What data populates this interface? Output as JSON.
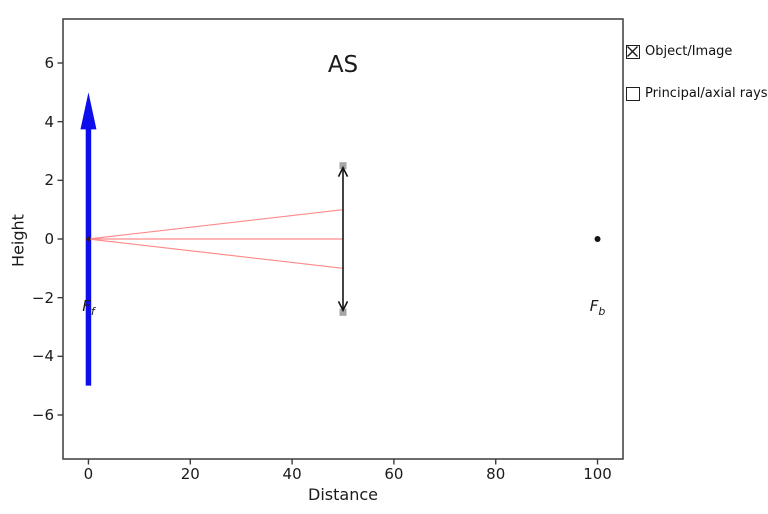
{
  "chart_data": {
    "type": "line",
    "title": "AS",
    "xlabel": "Distance",
    "ylabel": "Height",
    "xlim": [
      -5,
      105
    ],
    "ylim": [
      -7.5,
      7.5
    ],
    "xticks": [
      0,
      20,
      40,
      60,
      80,
      100
    ],
    "yticks": [
      -6,
      -4,
      -2,
      0,
      2,
      4,
      6
    ],
    "grid": false,
    "legend_position": "outside-right",
    "colors": {
      "spine": "#3c3c3c",
      "object_arrow": "#0d0dee",
      "ray": "#ff8a8a",
      "stop": "#151515",
      "stop_marker": "#a6a6a6",
      "origin_dot": "#3c1010",
      "focal_dot": "#151515"
    },
    "series": [
      {
        "name": "object-arrow",
        "kind": "filled-arrow",
        "from": [
          0,
          -5
        ],
        "to": [
          0,
          5
        ],
        "color": "#0d0dee",
        "shaft_width": 5.5,
        "head_width": 16,
        "head_length": 37
      },
      {
        "name": "axial-ray-upper",
        "kind": "segment",
        "from": [
          0,
          0
        ],
        "to": [
          50,
          1
        ],
        "color": "#ff8a8a",
        "width": 1.2
      },
      {
        "name": "axial-ray-middle",
        "kind": "segment",
        "from": [
          0,
          0
        ],
        "to": [
          50,
          0
        ],
        "color": "#ff8a8a",
        "width": 1.2
      },
      {
        "name": "axial-ray-lower",
        "kind": "segment",
        "from": [
          0,
          0
        ],
        "to": [
          50,
          -1
        ],
        "color": "#ff8a8a",
        "width": 1.2
      },
      {
        "name": "aperture-stop-arrow",
        "kind": "double-arrow",
        "from": [
          50,
          -2.5
        ],
        "to": [
          50,
          2.5
        ],
        "color": "#151515",
        "width": 1.6,
        "head_length": 9,
        "head_halfwidth": 4.5,
        "marker_size": 7,
        "marker_color": "#a6a6a6"
      },
      {
        "name": "origin-dot",
        "kind": "dot",
        "at": [
          0,
          0
        ],
        "r": 2.2,
        "color": "#3c1010"
      },
      {
        "name": "back-focal-dot",
        "kind": "dot",
        "at": [
          100,
          0
        ],
        "r": 3,
        "color": "#151515"
      }
    ],
    "annotations": [
      {
        "name": "front-focal-label",
        "main": "F",
        "sub": "f",
        "x": 0,
        "y": -2.33
      },
      {
        "name": "back-focal-label",
        "main": "F",
        "sub": "b",
        "x": 100,
        "y": -2.33
      }
    ]
  },
  "legend": {
    "items": [
      {
        "label": "Object/Image",
        "checked": true
      },
      {
        "label": "Principal/axial rays",
        "checked": false
      }
    ]
  }
}
